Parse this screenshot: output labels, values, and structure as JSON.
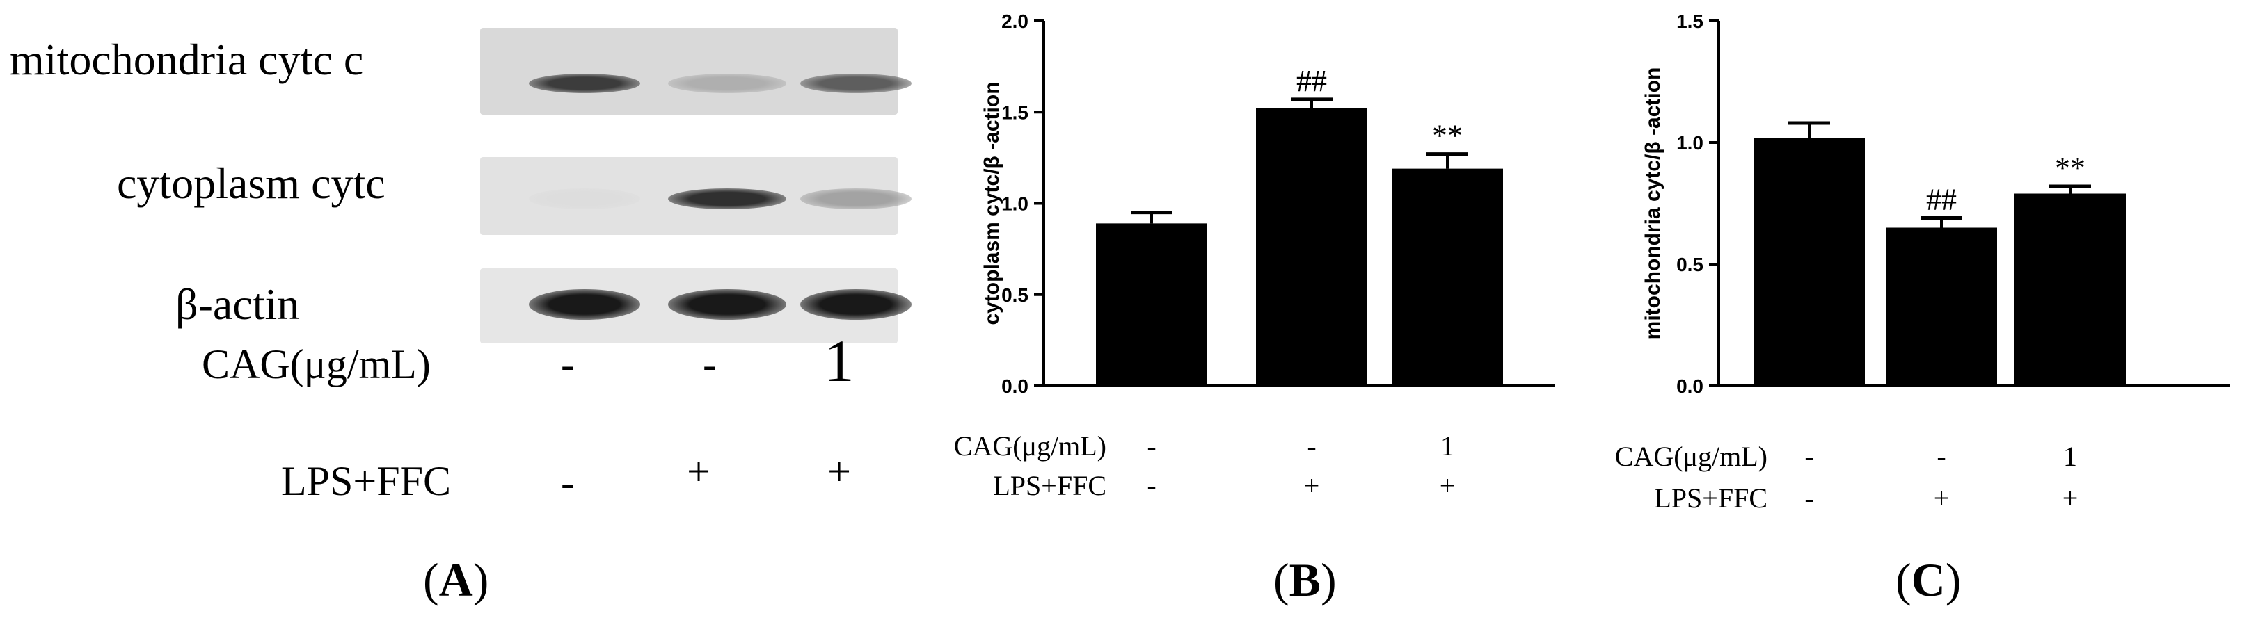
{
  "panel_a": {
    "rows": [
      {
        "label": "mitochondria cytc  c"
      },
      {
        "label": "cytoplasm cytc"
      },
      {
        "label": "β-actin"
      }
    ],
    "band_intensity": [
      [
        0.85,
        0.35,
        0.7
      ],
      [
        0.15,
        0.9,
        0.4
      ],
      [
        1.0,
        1.0,
        1.0
      ]
    ],
    "conditions": [
      {
        "label": "CAG(μg/mL)",
        "values": [
          "-",
          "-",
          "1"
        ]
      },
      {
        "label": "LPS+FFC",
        "values": [
          "-",
          "+",
          "+"
        ]
      }
    ],
    "letter": "A"
  },
  "chart_data": [
    {
      "type": "bar",
      "panel": "B",
      "ylabel": "cytoplasm cytc/β -action",
      "ylim": [
        0,
        2.0
      ],
      "yticks": [
        "0.0",
        "0.5",
        "1.0",
        "1.5",
        "2.0"
      ],
      "values": [
        0.89,
        1.52,
        1.19
      ],
      "errors": [
        0.06,
        0.05,
        0.08
      ],
      "annotations": [
        "",
        "##",
        "**"
      ],
      "conditions": [
        {
          "label": "CAG(μg/mL)",
          "values": [
            "-",
            "-",
            "1"
          ]
        },
        {
          "label": "LPS+FFC",
          "values": [
            "-",
            "+",
            "+"
          ]
        }
      ],
      "bar_color": "#000000"
    },
    {
      "type": "bar",
      "panel": "C",
      "ylabel": "mitochondria cytc/β -action",
      "ylim": [
        0,
        1.5
      ],
      "yticks": [
        "0.0",
        "0.5",
        "1.0",
        "1.5"
      ],
      "values": [
        1.02,
        0.65,
        0.79
      ],
      "errors": [
        0.06,
        0.04,
        0.03
      ],
      "annotations": [
        "",
        "##",
        "**"
      ],
      "conditions": [
        {
          "label": "CAG(μg/mL)",
          "values": [
            "-",
            "-",
            "1"
          ]
        },
        {
          "label": "LPS+FFC",
          "values": [
            "-",
            "+",
            "+"
          ]
        }
      ],
      "bar_color": "#000000"
    }
  ]
}
